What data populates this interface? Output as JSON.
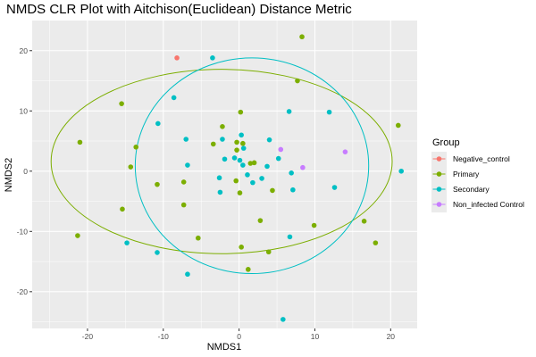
{
  "chart_data": {
    "type": "scatter",
    "title": "NMDS CLR Plot with Aitchison(Euclidean) Distance Metric",
    "xlabel": "NMDS1",
    "ylabel": "NMDS2",
    "xlim": [
      -27.3,
      23.5
    ],
    "ylim": [
      -26.1,
      25.0
    ],
    "x_ticks": [
      -20,
      -10,
      0,
      10,
      20
    ],
    "x_tick_labels": [
      "-20",
      "-10",
      "0",
      "10",
      "20"
    ],
    "y_ticks": [
      -20,
      -10,
      0,
      10,
      20
    ],
    "y_tick_labels": [
      "-20",
      "-10",
      "0",
      "10",
      "20"
    ],
    "grid": true,
    "legend": {
      "title": "Group",
      "position": "right",
      "entries": [
        "Negative_control",
        "Primary",
        "Secondary",
        "Non_infected Control"
      ]
    },
    "colors": {
      "panel": "#ebebeb",
      "grid_major": "#ffffff",
      "Negative_control": "#f8766d",
      "Primary": "#7cae00",
      "Secondary": "#00bfc4",
      "Non_infected Control": "#c77cff"
    },
    "series": [
      {
        "name": "Negative_control",
        "points": [
          [
            -8.2,
            18.8
          ]
        ]
      },
      {
        "name": "Primary",
        "points": [
          [
            8.3,
            22.3
          ],
          [
            7.7,
            15.0
          ],
          [
            -15.5,
            11.2
          ],
          [
            0.2,
            9.8
          ],
          [
            -2.2,
            7.4
          ],
          [
            -13.6,
            4.0
          ],
          [
            -21.0,
            4.8
          ],
          [
            -14.3,
            0.7
          ],
          [
            -7.3,
            -1.8
          ],
          [
            -10.8,
            -2.2
          ],
          [
            -15.4,
            -6.3
          ],
          [
            -21.3,
            -10.7
          ],
          [
            -7.3,
            -5.6
          ],
          [
            -5.4,
            -11.1
          ],
          [
            -3.4,
            4.5
          ],
          [
            -0.3,
            3.5
          ],
          [
            0.5,
            4.6
          ],
          [
            -0.3,
            4.8
          ],
          [
            1.5,
            1.3
          ],
          [
            -0.4,
            -1.6
          ],
          [
            0.1,
            -3.6
          ],
          [
            2.0,
            1.4
          ],
          [
            4.4,
            -3.2
          ],
          [
            2.8,
            -8.2
          ],
          [
            0.3,
            -12.6
          ],
          [
            1.2,
            -16.3
          ],
          [
            3.9,
            -13.4
          ],
          [
            9.9,
            -9.0
          ],
          [
            16.5,
            -8.3
          ],
          [
            18.0,
            -11.9
          ],
          [
            21.0,
            7.6
          ]
        ]
      },
      {
        "name": "Secondary",
        "points": [
          [
            -3.5,
            18.8
          ],
          [
            -8.6,
            12.2
          ],
          [
            -10.7,
            7.9
          ],
          [
            -7.0,
            5.3
          ],
          [
            -6.8,
            1.0
          ],
          [
            -2.2,
            5.3
          ],
          [
            -1.9,
            2.0
          ],
          [
            0.3,
            6.0
          ],
          [
            0.6,
            3.8
          ],
          [
            -0.6,
            2.2
          ],
          [
            0.1,
            1.8
          ],
          [
            0.5,
            1.0
          ],
          [
            1.1,
            -0.6
          ],
          [
            -2.6,
            -1.1
          ],
          [
            -2.5,
            -3.5
          ],
          [
            1.8,
            -1.9
          ],
          [
            3.0,
            -1.2
          ],
          [
            3.7,
            0.8
          ],
          [
            4.0,
            5.2
          ],
          [
            5.2,
            2.1
          ],
          [
            6.6,
            9.9
          ],
          [
            11.9,
            9.8
          ],
          [
            6.9,
            -0.3
          ],
          [
            7.1,
            -3.1
          ],
          [
            12.6,
            -2.7
          ],
          [
            21.4,
            0.0
          ],
          [
            6.7,
            -10.9
          ],
          [
            -14.8,
            -11.9
          ],
          [
            -10.8,
            -13.5
          ],
          [
            -6.8,
            -17.1
          ],
          [
            5.8,
            -24.6
          ]
        ]
      },
      {
        "name": "Non_infected Control",
        "points": [
          [
            5.5,
            3.6
          ],
          [
            14.0,
            3.2
          ],
          [
            8.4,
            0.6
          ]
        ]
      }
    ],
    "ellipses": [
      {
        "series": "Primary",
        "center": [
          -2.3,
          1.6
        ],
        "radius_x": 22.5,
        "radius_y": 15.3
      },
      {
        "series": "Secondary",
        "center": [
          1.7,
          0.9
        ],
        "radius_x": 15.4,
        "radius_y": 17.9
      }
    ]
  }
}
